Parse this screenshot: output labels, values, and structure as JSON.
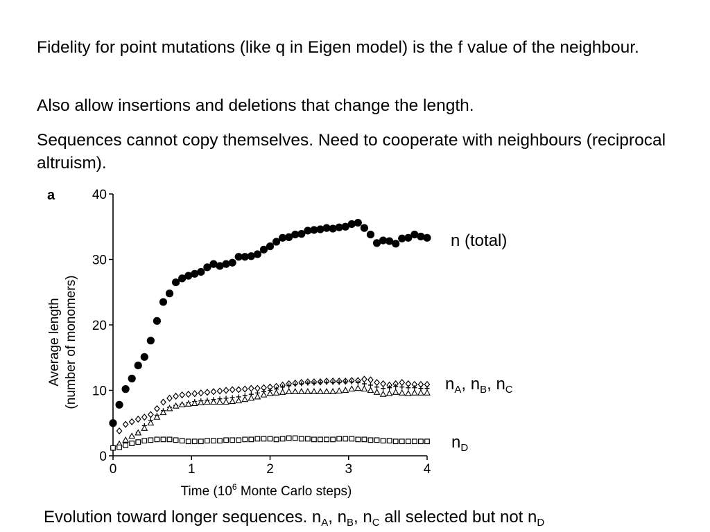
{
  "paragraphs": [
    "Fidelity for point mutations (like q in Eigen model) is the f value of the neighbour.",
    "Also allow insertions and deletions that change the length.",
    "Sequences cannot copy themselves. Need to cooperate with neighbours (reciprocal altruism)."
  ],
  "labels": {
    "total": "n  (total)",
    "abc": {
      "a": "n",
      "a_sub": "A",
      "b": "n",
      "b_sub": "B",
      "c": "n",
      "c_sub": "C",
      "sep": ", "
    },
    "d": {
      "main": "n",
      "sub": "D"
    }
  },
  "caption": {
    "prefix": "Evolution toward longer sequences. ",
    "n": "n",
    "sub_a": "A",
    "sub_b": "B",
    "sub_c": "C",
    "sep": ", ",
    "middle": " all selected but not ",
    "sub_d": "D"
  },
  "chart_data": {
    "type": "scatter",
    "panel_label": "a",
    "ylabel_line1": "Average length",
    "ylabel_line2": "(number of monomers)",
    "xlabel_pre": "Time (10",
    "xlabel_sup": "6",
    "xlabel_post": " Monte Carlo steps)",
    "xlim": [
      0,
      4
    ],
    "ylim": [
      0,
      40
    ],
    "xticks": [
      0,
      1,
      2,
      3,
      4
    ],
    "yticks": [
      0,
      10,
      20,
      30,
      40
    ],
    "series": [
      {
        "marker": "filled-circle",
        "x": [
          0,
          0.08,
          0.16,
          0.24,
          0.32,
          0.4,
          0.48,
          0.56,
          0.64,
          0.72,
          0.8,
          0.88,
          0.96,
          1.04,
          1.12,
          1.2,
          1.28,
          1.36,
          1.44,
          1.52,
          1.6,
          1.68,
          1.76,
          1.84,
          1.92,
          2.0,
          2.08,
          2.16,
          2.24,
          2.32,
          2.4,
          2.48,
          2.56,
          2.64,
          2.72,
          2.8,
          2.88,
          2.96,
          3.04,
          3.12,
          3.2,
          3.28,
          3.36,
          3.44,
          3.52,
          3.6,
          3.68,
          3.76,
          3.84,
          3.92,
          4.0
        ],
        "y": [
          5,
          7.8,
          10.2,
          11.8,
          13.8,
          15.1,
          17.6,
          20.6,
          23.5,
          24.8,
          26.5,
          27.1,
          27.5,
          27.8,
          28.1,
          28.8,
          29.3,
          29.0,
          29.3,
          29.5,
          30.4,
          30.4,
          30.5,
          30.8,
          31.5,
          32.0,
          32.7,
          33.3,
          33.4,
          33.8,
          33.9,
          34.4,
          34.5,
          34.6,
          34.8,
          34.7,
          34.9,
          35.0,
          35.4,
          35.6,
          34.8,
          33.8,
          32.5,
          32.9,
          32.8,
          32.4,
          33.2,
          33.3,
          33.8,
          33.5,
          33.3
        ]
      },
      {
        "marker": "open-diamond",
        "x": [
          0.08,
          0.16,
          0.24,
          0.32,
          0.4,
          0.48,
          0.56,
          0.64,
          0.72,
          0.8,
          0.88,
          0.96,
          1.04,
          1.12,
          1.2,
          1.28,
          1.36,
          1.44,
          1.52,
          1.6,
          1.68,
          1.76,
          1.84,
          1.92,
          2.0,
          2.08,
          2.16,
          2.24,
          2.32,
          2.4,
          2.48,
          2.56,
          2.64,
          2.72,
          2.8,
          2.88,
          2.96,
          3.04,
          3.12,
          3.2,
          3.28,
          3.36,
          3.44,
          3.52,
          3.6,
          3.68,
          3.76,
          3.84,
          3.92,
          4.0
        ],
        "y": [
          3.8,
          4.8,
          5.2,
          5.6,
          5.9,
          6.3,
          7.2,
          8.2,
          8.8,
          9.1,
          9.3,
          9.4,
          9.5,
          9.6,
          9.7,
          9.8,
          9.9,
          10.0,
          10.1,
          10.1,
          10.2,
          10.3,
          10.3,
          10.4,
          10.5,
          10.6,
          10.8,
          11.0,
          11.1,
          11.2,
          11.3,
          11.3,
          11.3,
          11.4,
          11.4,
          11.4,
          11.4,
          11.5,
          11.5,
          11.7,
          11.6,
          11.2,
          11.0,
          10.8,
          11.0,
          11.2,
          11.0,
          10.9,
          10.9,
          10.9
        ]
      },
      {
        "marker": "plus",
        "x": [
          0.08,
          0.16,
          0.24,
          0.32,
          0.4,
          0.48,
          0.56,
          0.64,
          0.72,
          0.8,
          0.88,
          0.96,
          1.04,
          1.12,
          1.2,
          1.28,
          1.36,
          1.44,
          1.52,
          1.6,
          1.68,
          1.76,
          1.84,
          1.92,
          2.0,
          2.08,
          2.16,
          2.24,
          2.32,
          2.4,
          2.48,
          2.56,
          2.64,
          2.72,
          2.8,
          2.88,
          2.96,
          3.04,
          3.12,
          3.2,
          3.28,
          3.36,
          3.44,
          3.52,
          3.6,
          3.68,
          3.76,
          3.84,
          3.92,
          4.0
        ],
        "y": [
          1.6,
          2.2,
          3.0,
          3.6,
          4.6,
          5.4,
          6.2,
          6.9,
          7.4,
          7.7,
          7.9,
          8.1,
          8.3,
          8.4,
          8.5,
          8.6,
          8.7,
          8.8,
          8.9,
          9.0,
          9.2,
          9.4,
          9.6,
          9.8,
          10.0,
          10.2,
          10.5,
          10.7,
          10.9,
          11.0,
          11.1,
          11.1,
          11.2,
          11.2,
          11.2,
          11.2,
          11.3,
          11.3,
          11.2,
          11.0,
          10.8,
          10.5,
          10.3,
          10.4,
          10.6,
          10.5,
          10.4,
          10.4,
          10.3,
          10.3
        ]
      },
      {
        "marker": "open-triangle",
        "x": [
          0.08,
          0.16,
          0.24,
          0.32,
          0.4,
          0.48,
          0.56,
          0.64,
          0.72,
          0.8,
          0.88,
          0.96,
          1.04,
          1.12,
          1.2,
          1.28,
          1.36,
          1.44,
          1.52,
          1.6,
          1.68,
          1.76,
          1.84,
          1.92,
          2.0,
          2.08,
          2.16,
          2.24,
          2.32,
          2.4,
          2.48,
          2.56,
          2.64,
          2.72,
          2.8,
          2.88,
          2.96,
          3.04,
          3.12,
          3.2,
          3.28,
          3.36,
          3.44,
          3.52,
          3.6,
          3.68,
          3.76,
          3.84,
          3.92,
          4.0
        ],
        "y": [
          1.8,
          2.4,
          3.0,
          3.5,
          4.2,
          5.0,
          5.9,
          6.6,
          7.2,
          7.6,
          7.8,
          7.9,
          8.0,
          8.1,
          8.2,
          8.2,
          8.2,
          8.2,
          8.3,
          8.4,
          8.6,
          8.8,
          9.0,
          9.3,
          9.5,
          9.6,
          9.7,
          9.8,
          9.8,
          9.8,
          9.8,
          9.8,
          9.8,
          9.8,
          9.8,
          9.9,
          10.0,
          10.2,
          10.3,
          10.2,
          10.0,
          9.7,
          9.4,
          9.5,
          9.7,
          9.6,
          9.5,
          9.6,
          9.6,
          9.6
        ]
      },
      {
        "marker": "open-square",
        "x": [
          0,
          0.08,
          0.16,
          0.24,
          0.32,
          0.4,
          0.48,
          0.56,
          0.64,
          0.72,
          0.8,
          0.88,
          0.96,
          1.04,
          1.12,
          1.2,
          1.28,
          1.36,
          1.44,
          1.52,
          1.6,
          1.68,
          1.76,
          1.84,
          1.92,
          2.0,
          2.08,
          2.16,
          2.24,
          2.32,
          2.4,
          2.48,
          2.56,
          2.64,
          2.72,
          2.8,
          2.88,
          2.96,
          3.04,
          3.12,
          3.2,
          3.28,
          3.36,
          3.44,
          3.52,
          3.6,
          3.68,
          3.76,
          3.84,
          3.92,
          4.0
        ],
        "y": [
          1.2,
          1.3,
          1.6,
          1.9,
          2.1,
          2.3,
          2.4,
          2.5,
          2.5,
          2.5,
          2.4,
          2.3,
          2.2,
          2.2,
          2.2,
          2.3,
          2.3,
          2.3,
          2.4,
          2.4,
          2.4,
          2.5,
          2.5,
          2.6,
          2.6,
          2.6,
          2.5,
          2.6,
          2.7,
          2.7,
          2.6,
          2.6,
          2.5,
          2.5,
          2.5,
          2.5,
          2.6,
          2.6,
          2.6,
          2.5,
          2.5,
          2.4,
          2.4,
          2.3,
          2.3,
          2.2,
          2.2,
          2.2,
          2.2,
          2.2,
          2.2
        ]
      }
    ]
  }
}
